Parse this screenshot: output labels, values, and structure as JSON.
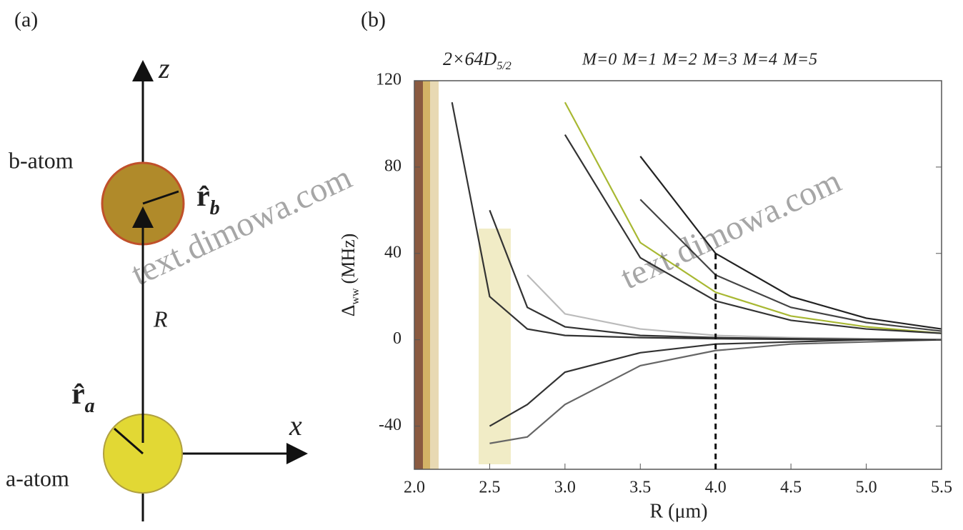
{
  "panel_a": {
    "label": "(a)",
    "axis_z": "z",
    "axis_x": "x",
    "atom_b": "b-atom",
    "atom_a": "a-atom",
    "r_b_symbol": "r̂",
    "r_b_sub": "b",
    "r_a_symbol": "r̂",
    "r_a_sub": "a",
    "distance": "R"
  },
  "watermark": "text.dimowa.com",
  "chart_data": {
    "type": "line",
    "panel_label": "(b)",
    "state_label": "2×64D",
    "state_sub": "5/2",
    "xlabel": "R (μm)",
    "ylabel_symbol": "Δ",
    "ylabel_sub": "ww",
    "ylabel_unit": "(MHz)",
    "x": [
      2.0,
      2.25,
      2.5,
      2.75,
      3.0,
      3.5,
      4.0,
      4.5,
      5.0,
      5.5
    ],
    "xlim": [
      2.0,
      5.5
    ],
    "ylim": [
      -60,
      120
    ],
    "xticks": [
      {
        "value": 2.0,
        "label": "2.0"
      },
      {
        "value": 2.5,
        "label": "2.5"
      },
      {
        "value": 3.0,
        "label": "3.0"
      },
      {
        "value": 3.5,
        "label": "3.5"
      },
      {
        "value": 4.0,
        "label": "4.0"
      },
      {
        "value": 4.5,
        "label": "4.5"
      },
      {
        "value": 5.0,
        "label": "5.0"
      },
      {
        "value": 5.5,
        "label": "5.5"
      }
    ],
    "yticks": [
      -40,
      0,
      40,
      80,
      120
    ],
    "reference_line": {
      "x": 4.0,
      "y_top": 40
    },
    "series": [
      {
        "name": "M=0",
        "color": "#222222",
        "values": [
          null,
          null,
          null,
          null,
          null,
          85,
          40,
          20,
          10,
          5
        ]
      },
      {
        "name": "M=1",
        "color": "#444444",
        "values": [
          null,
          null,
          null,
          null,
          null,
          65,
          30,
          15,
          8,
          4
        ]
      },
      {
        "name": "M=2",
        "color": "#a8b832",
        "values": [
          null,
          null,
          null,
          null,
          110,
          45,
          22,
          11,
          6,
          3
        ]
      },
      {
        "name": "M=3",
        "color": "#333333",
        "values": [
          null,
          null,
          null,
          null,
          95,
          38,
          18,
          9,
          5,
          3
        ]
      },
      {
        "name": "M=4",
        "color": "#bbbbbb",
        "values": [
          null,
          null,
          null,
          30,
          12,
          5,
          2,
          1,
          0.5,
          0.2
        ]
      },
      {
        "name": "M=5",
        "color": "#666666",
        "values": [
          null,
          null,
          -48,
          -45,
          -30,
          -12,
          -5,
          -2,
          -1,
          0
        ]
      },
      {
        "color": "#333333",
        "values": [
          null,
          null,
          -40,
          -30,
          -15,
          -6,
          -2,
          -1,
          0,
          0
        ]
      },
      {
        "color": "#333333",
        "values": [
          null,
          110,
          20,
          5,
          2,
          1,
          0.5,
          0.2,
          0.1,
          0
        ]
      },
      {
        "color": "#333333",
        "values": [
          null,
          null,
          60,
          15,
          6,
          2,
          1,
          0.5,
          0.2,
          0
        ]
      }
    ]
  }
}
